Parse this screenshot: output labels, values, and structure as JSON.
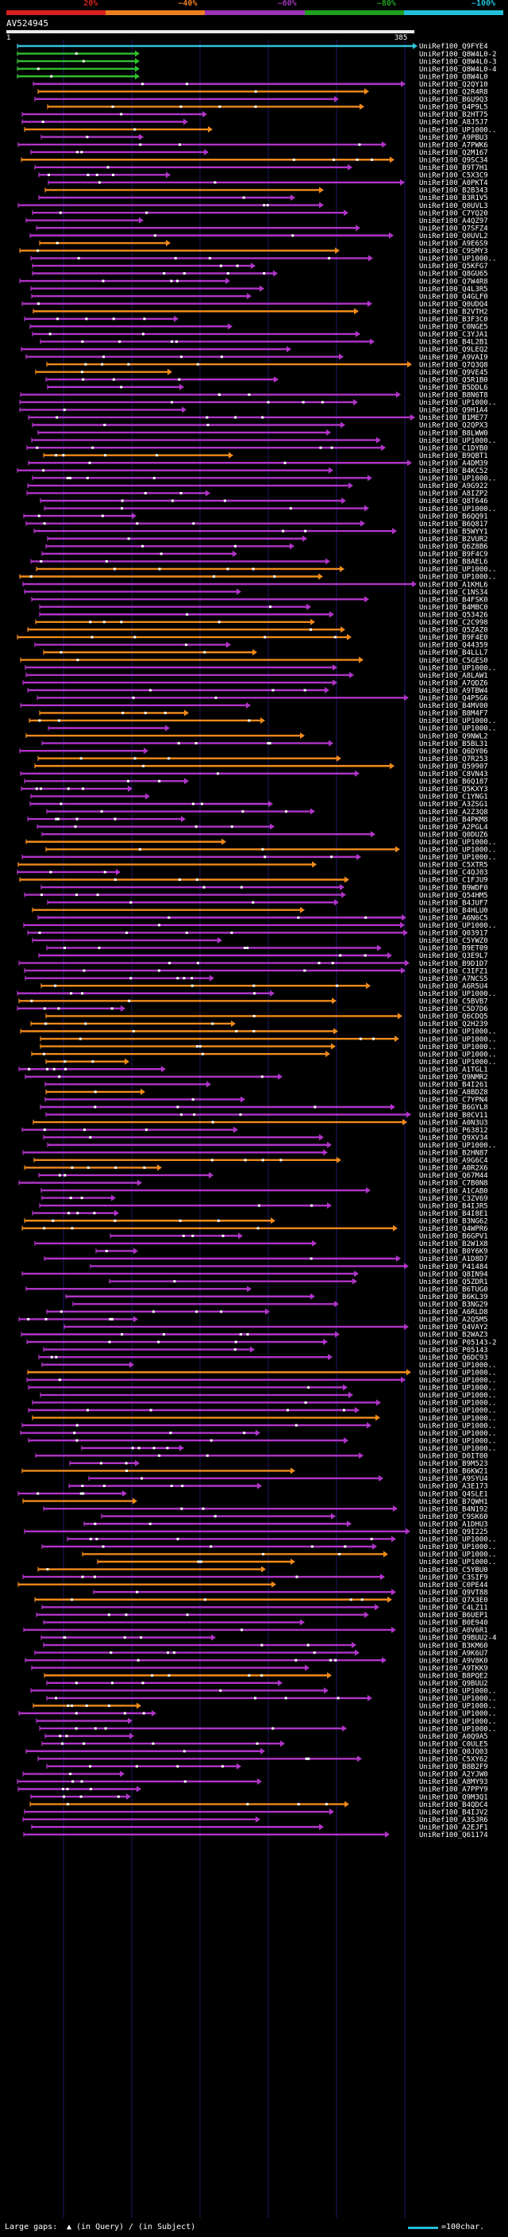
{
  "query_id": "AV524945",
  "query_start": "1",
  "query_end": "385",
  "legend": [
    {
      "label": "20%",
      "color": "#d92020"
    },
    {
      "label": "~40%",
      "color": "#ee7f20"
    },
    {
      "label": "~60%",
      "color": "#9a34b4"
    },
    {
      "label": "~80%",
      "color": "#20a020"
    },
    {
      "label": "~100%",
      "color": "#20c0d8"
    }
  ],
  "hits": [
    "UniRef100_Q9FYE4",
    "UniRef100_Q8W4L0-2",
    "UniRef100_Q8W4L0-3",
    "UniRef100_Q8W4L0-4",
    "UniRef100_Q8W4L0",
    "UniRef100_Q2QY10",
    "UniRef100_Q2R4R8",
    "UniRef100_B6U9Q3",
    "UniRef100_Q4P9L5",
    "UniRef100_B2HT75",
    "UniRef100_A8J5J7",
    "UniRef100_UP1000..",
    "UniRef100_A9PBU3",
    "UniRef100_A7PWK6",
    "UniRef100_Q2M167",
    "UniRef100_Q9SC34",
    "UniRef100_B9T7H1",
    "UniRef100_C5X3C9",
    "UniRef100_A0PKT4",
    "UniRef100_B2B343",
    "UniRef100_B3R1V5",
    "UniRef100_Q0UVL3",
    "UniRef100_C7YQ20",
    "UniRef100_A4QZ97",
    "UniRef100_Q7SFZ4",
    "UniRef100_Q0UVL2",
    "UniRef100_A9E6S9",
    "UniRef100_C9SMY3",
    "UniRef100_UP1000..",
    "UniRef100_Q5KFG7",
    "UniRef100_Q8GU65",
    "UniRef100_Q7W4R8",
    "UniRef100_Q4L3R5",
    "UniRef100_Q4GLF0",
    "UniRef100_Q0UDQ4",
    "UniRef100_B2VTH2",
    "UniRef100_B3F3C0",
    "UniRef100_C0NGE5",
    "UniRef100_C3YJA1",
    "UniRef100_B4L2B1",
    "UniRef100_Q9LEQ2",
    "UniRef100_A9VAI9",
    "UniRef100_Q7Q3Q8",
    "UniRef100_Q9VE45",
    "UniRef100_Q5R1B0",
    "UniRef100_B5DDL6",
    "UniRef100_B8N6T8",
    "UniRef100_UP1000..",
    "UniRef100_Q9H1A4",
    "UniRef100_B1ME77",
    "UniRef100_Q2QPX3",
    "UniRef100_B8LWW0",
    "UniRef100_UP1000..",
    "UniRef100_C1DYB0",
    "UniRef100_B9QBT1",
    "UniRef100_A4DM39",
    "UniRef100_B4KC52",
    "UniRef100_UP1000..",
    "UniRef100_A9G922",
    "UniRef100_A8IZP2",
    "UniRef100_Q8T646",
    "UniRef100_UP1000..",
    "UniRef100_B6QQ91",
    "UniRef100_B6Q817",
    "UniRef100_B5WYY1",
    "UniRef100_B2VUR2",
    "UniRef100_Q6Z8B6",
    "UniRef100_B9F4C9",
    "UniRef100_B8AEL6",
    "UniRef100_UP1000..",
    "UniRef100_UP1000..",
    "UniRef100_A1KHL6",
    "UniRef100_C1NS34",
    "UniRef100_B4FSK0",
    "UniRef100_B4MBC0",
    "UniRef100_Q53426",
    "UniRef100_C2C998",
    "UniRef100_Q5ZAZ0",
    "UniRef100_B9F4E0",
    "UniRef100_Q44359",
    "UniRef100_B4LLL7",
    "UniRef100_C5GES0",
    "UniRef100_UP1000..",
    "UniRef100_A8LAW1",
    "UniRef100_A7QDZ6",
    "UniRef100_A9TBW4",
    "UniRef100_Q4P5G6",
    "UniRef100_B4MV00",
    "UniRef100_B8M4F7",
    "UniRef100_UP1000..",
    "UniRef100_UP1000..",
    "UniRef100_Q9NWL2",
    "UniRef100_B5BL31",
    "UniRef100_Q6DY06",
    "UniRef100_Q7R253",
    "UniRef100_Q59907",
    "UniRef100_C8VN43",
    "UniRef100_B6Q187",
    "UniRef100_Q5KXY3",
    "UniRef100_C1YNG1",
    "UniRef100_A3ZSG1",
    "UniRef100_A2Z3Q8",
    "UniRef100_B4PKM8",
    "UniRef100_A2PGL4",
    "UniRef100_Q0DUZ6",
    "UniRef100_UP1000..",
    "UniRef100_UP1000..",
    "UniRef100_UP1000..",
    "UniRef100_C5XTR5",
    "UniRef100_C4QJ03",
    "UniRef100_C1FJU9",
    "UniRef100_B9WDF0",
    "UniRef100_Q54HM5",
    "UniRef100_B4JUF7",
    "UniRef100_B4HLU0",
    "UniRef100_A6N6C5",
    "UniRef100_UP1000..",
    "UniRef100_Q03917",
    "UniRef100_C5YWZ0",
    "UniRef100_B9ET09",
    "UniRef100_Q3E9L7",
    "UniRef100_B9D1D7",
    "UniRef100_C3IFZ1",
    "UniRef100_A7NCS5",
    "UniRef100_A6R5U4",
    "UniRef100_UP1000..",
    "UniRef100_C5BVB7",
    "UniRef100_C5D7D6",
    "UniRef100_Q6CDQ5",
    "UniRef100_Q2H239",
    "UniRef100_UP1000..",
    "UniRef100_UP1000..",
    "UniRef100_UP1000..",
    "UniRef100_UP1000..",
    "UniRef100_UP1000..",
    "UniRef100_A1TGL1",
    "UniRef100_Q9NMR2",
    "UniRef100_B4I261",
    "UniRef100_A8BDZ8",
    "UniRef100_C7YPN4",
    "UniRef100_B6GYL8",
    "UniRef100_B0CV11",
    "UniRef100_A0N3U3",
    "UniRef100_P63812",
    "UniRef100_Q9XV34",
    "UniRef100_UP1000..",
    "UniRef100_B2HN87",
    "UniRef100_A9G6C4",
    "UniRef100_A0R2X6",
    "UniRef100_Q67M44",
    "UniRef100_C7B0N8",
    "UniRef100_A1CAB0",
    "UniRef100_C3ZV69",
    "UniRef100_B4IJR5",
    "UniRef100_B4I8E1",
    "UniRef100_B3NG62",
    "UniRef100_Q4WPR6",
    "UniRef100_B6GPV1",
    "UniRef100_B2W1X8",
    "UniRef100_B0Y6K9",
    "UniRef100_A1D8D7",
    "UniRef100_P41484",
    "UniRef100_Q8IN94",
    "UniRef100_Q5ZDR1",
    "UniRef100_B6TUG0",
    "UniRef100_B6KL39",
    "UniRef100_B3NG29",
    "UniRef100_A6RLD8",
    "UniRef100_A2Q5M5",
    "UniRef100_Q4VAY2",
    "UniRef100_B2WAZ3",
    "UniRef100_P05143-2",
    "UniRef100_P05143",
    "UniRef100_Q6DC93",
    "UniRef100_UP1000..",
    "UniRef100_UP1000..",
    "UniRef100_UP1000..",
    "UniRef100_UP1000..",
    "UniRef100_UP1000..",
    "UniRef100_UP1000..",
    "UniRef100_UP1000..",
    "UniRef100_UP1000..",
    "UniRef100_UP1000..",
    "UniRef100_UP1000..",
    "UniRef100_UP1000..",
    "UniRef100_UP1000..",
    "UniRef100_D0IT00",
    "UniRef100_B9M523",
    "UniRef100_B6KW21",
    "UniRef100_A9SYU4",
    "UniRef100_A3E173",
    "UniRef100_Q4SLE1",
    "UniRef100_B7QWH1",
    "UniRef100_B4N192",
    "UniRef100_C9SK60",
    "UniRef100_A1DHU3",
    "UniRef100_Q9I225",
    "UniRef100_UP1000..",
    "UniRef100_UP1000..",
    "UniRef100_UP1000..",
    "UniRef100_UP1000..",
    "UniRef100_C5YBU0",
    "UniRef100_C3SIF9",
    "UniRef100_C0PE44",
    "UniRef100_Q9VT88",
    "UniRef100_Q7X3E0",
    "UniRef100_C4LZ11",
    "UniRef100_B6UEP1",
    "UniRef100_B0E940",
    "UniRef100_A0V6R1",
    "UniRef100_Q9BUU2-4",
    "UniRef100_B3KM60",
    "UniRef100_A9K6U7",
    "UniRef100_A9V8K0",
    "UniRef100_A9TKK9",
    "UniRef100_B8PQE2",
    "UniRef100_Q9BUU2",
    "UniRef100_UP1000..",
    "UniRef100_UP1000..",
    "UniRef100_UP1000..",
    "UniRef100_UP1000..",
    "UniRef100_UP1000..",
    "UniRef100_UP1000..",
    "UniRef100_A0Q9A5",
    "UniRef100_C0ULE5",
    "UniRef100_Q0JQ03",
    "UniRef100_C5XY62",
    "UniRef100_B8B2F9",
    "UniRef100_A2YJW0",
    "UniRef100_A8MY93",
    "UniRef100_A7PPY9",
    "UniRef100_Q9M3Q1",
    "UniRef100_B4QDC4",
    "UniRef100_B4IJV2",
    "UniRef100_A3SJR6",
    "UniRef100_A2EJF1",
    "UniRef100_Q61174"
  ],
  "footer": {
    "large_gaps_label": "Large gaps:",
    "query_gap_text": "(in Query)",
    "subject_gap_text": "(in Subject)",
    "scale_text": "=100char."
  }
}
